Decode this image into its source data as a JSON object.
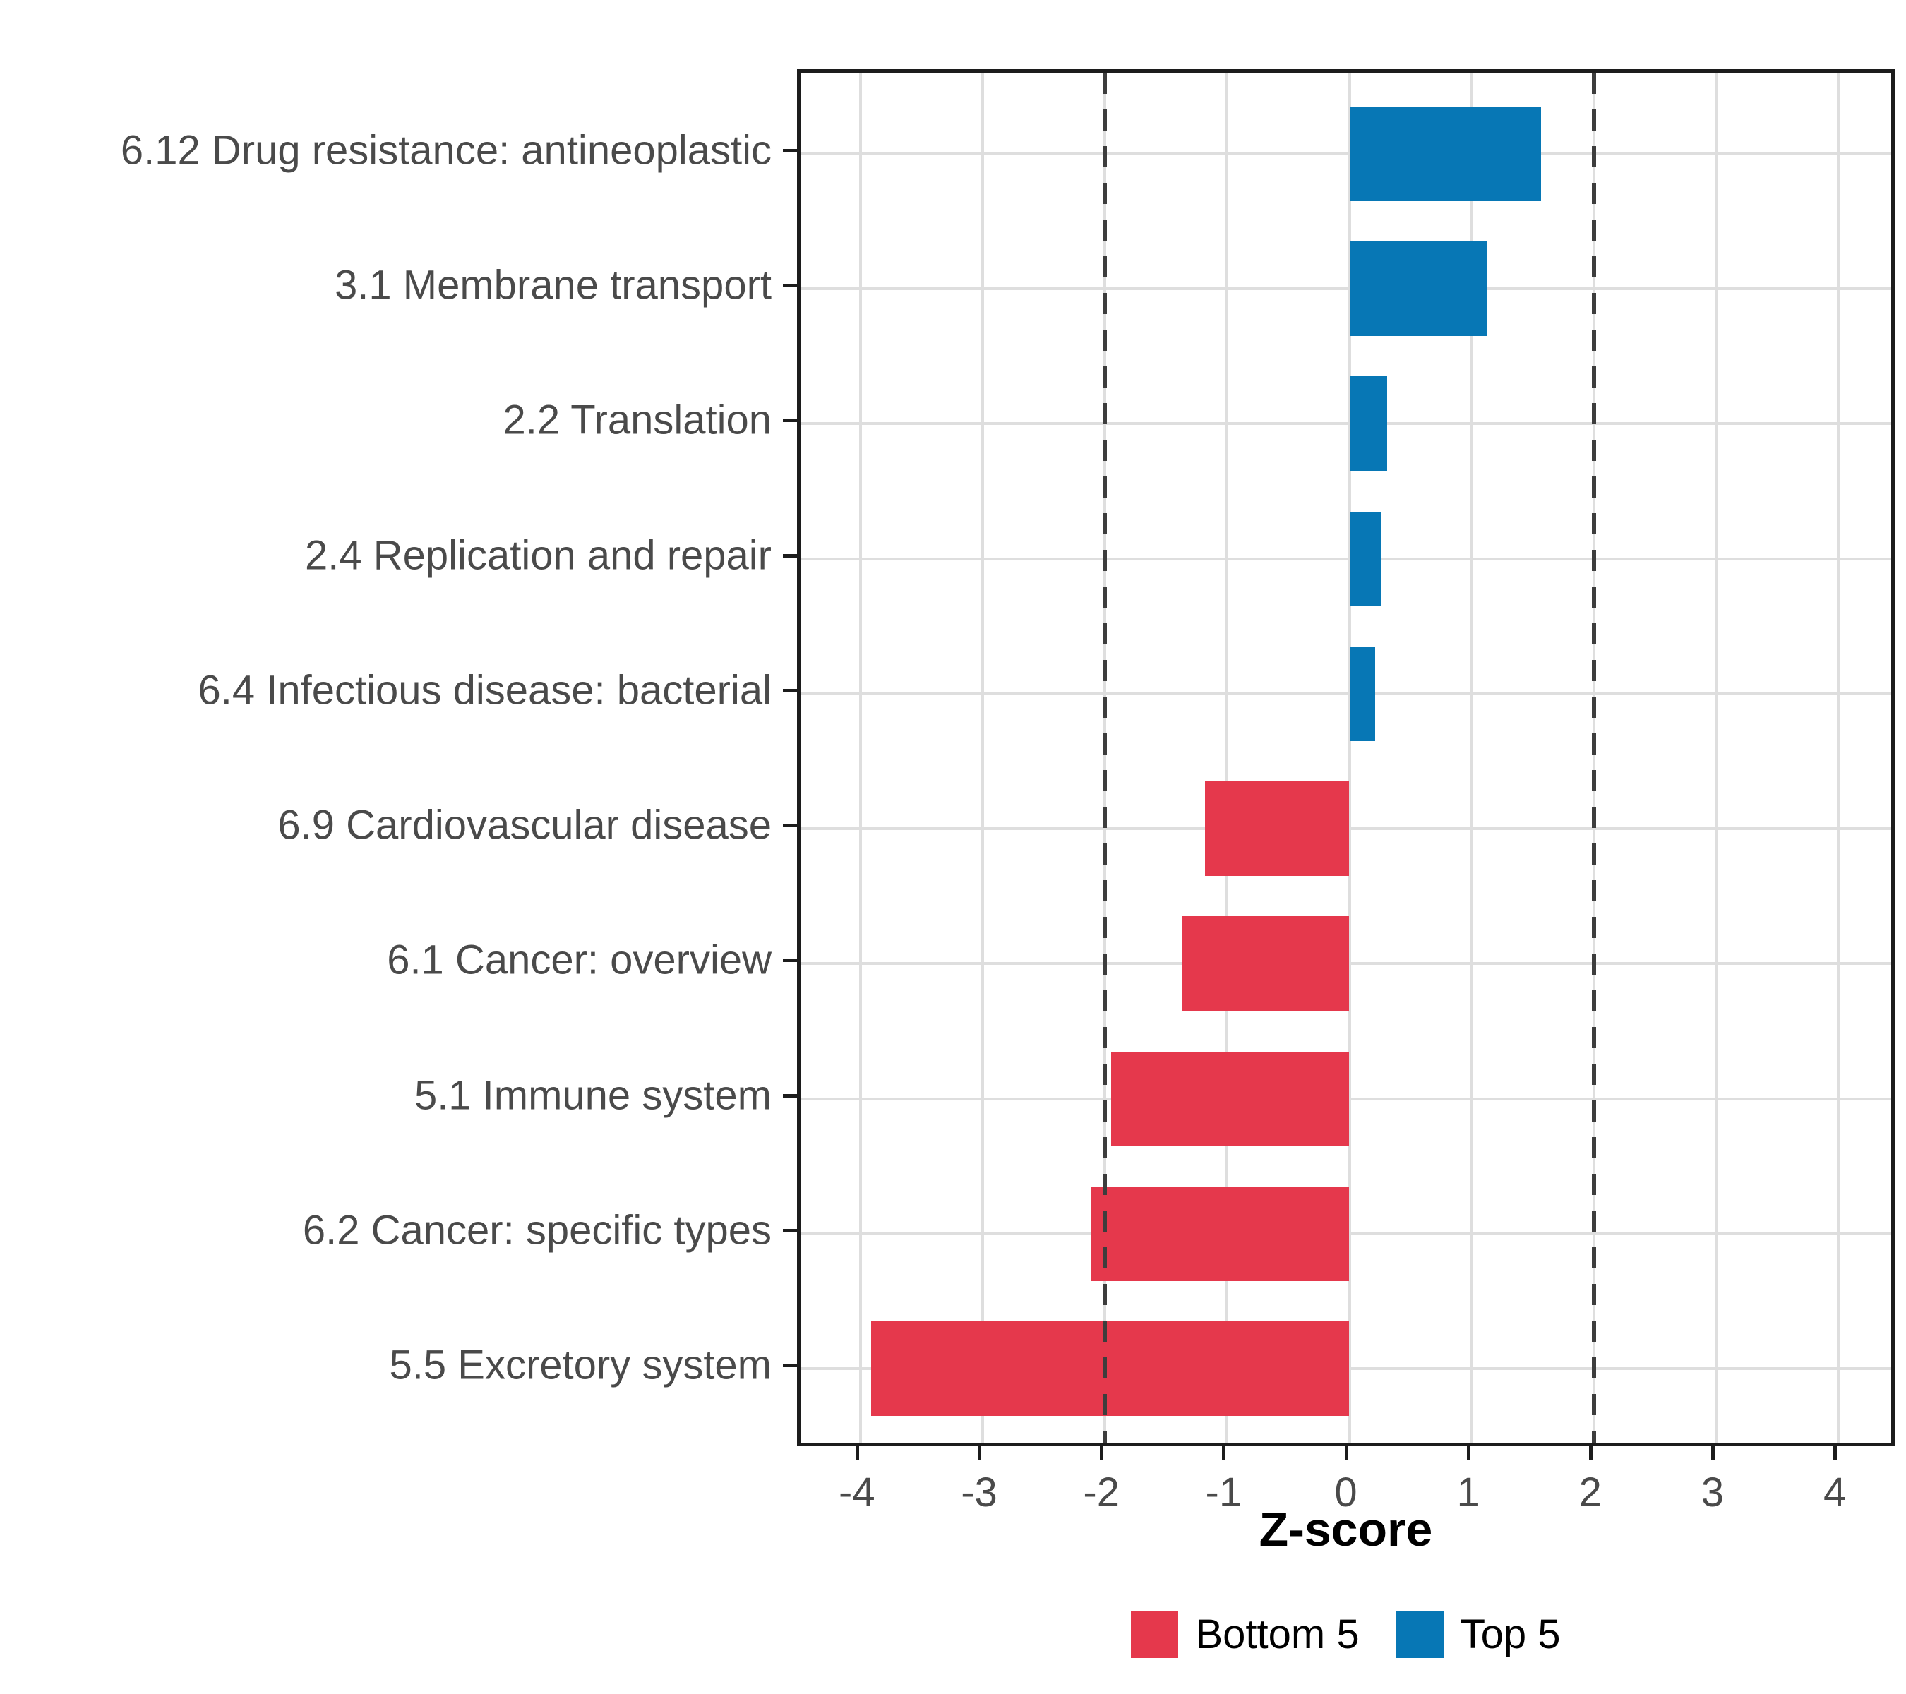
{
  "chart_data": {
    "type": "bar",
    "orientation": "horizontal",
    "title": "",
    "xlabel": "Z-score",
    "ylabel": "",
    "categories": [
      "6.12 Drug resistance: antineoplastic",
      "3.1 Membrane transport",
      "2.2 Translation",
      "2.4 Replication and repair",
      "6.4 Infectious disease: bacterial",
      "6.9 Cardiovascular disease",
      "6.1 Cancer: overview",
      "5.1 Immune system",
      "6.2 Cancer: specific types",
      "5.5 Excretory system"
    ],
    "values": [
      1.57,
      1.13,
      0.31,
      0.26,
      0.21,
      -1.18,
      -1.37,
      -1.95,
      -2.11,
      -3.91
    ],
    "groups": [
      "Top 5",
      "Top 5",
      "Top 5",
      "Top 5",
      "Top 5",
      "Bottom 5",
      "Bottom 5",
      "Bottom 5",
      "Bottom 5",
      "Bottom 5"
    ],
    "legend": [
      {
        "label": "Bottom 5",
        "color": "#e5384c"
      },
      {
        "label": "Top 5",
        "color": "#0777b5"
      }
    ],
    "x_ticks": [
      "-4",
      "-3",
      "-2",
      "-1",
      "0",
      "1",
      "2",
      "3",
      "4"
    ],
    "x_tick_values": [
      -4,
      -3,
      -2,
      -1,
      0,
      1,
      2,
      3,
      4
    ],
    "xlim": [
      -4.49,
      4.49
    ],
    "reference_lines": [
      -2,
      2
    ],
    "grid": true,
    "legend_position": "bottom",
    "colors": {
      "grid": "#dedede",
      "panel_border": "#1c1c1c",
      "axis_text": "#4a4a4a",
      "reference_line": "#3d3d3d"
    }
  }
}
